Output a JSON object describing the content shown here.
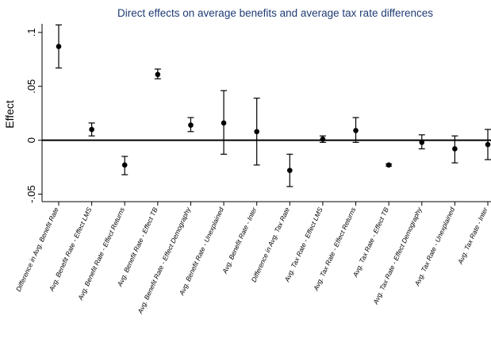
{
  "chart_data": {
    "type": "scatter",
    "title": "Direct effects on average benefits and average tax rate differences",
    "xlabel": "",
    "ylabel": "Effect",
    "ylim": [
      -0.057,
      0.108
    ],
    "yticks": [
      -0.05,
      0,
      0.05,
      0.1
    ],
    "ytick_labels": [
      "-.05",
      "0",
      ".05",
      ".1"
    ],
    "grid": false,
    "zero_line": true,
    "categories": [
      "Difference in Avg. Benefit Rate",
      "Avg. Benefit Rate - Effect LMS",
      "Avg. Benefit Rate - Effect Returns",
      "Avg. Benefit Rate - Effect TB",
      "Avg. Benefit Rate - Effect Demography",
      "Avg. Benefit Rate - Unexplained",
      "Avg. Benefit Rate - Inter",
      "Difference in Avg. Tax Rate",
      "Avg. Tax Rate - Effect LMS",
      "Avg. Tax Rate - Effect Returns",
      "Avg. Tax Rate - Effect TB",
      "Avg. Tax Rate - Effect Demography",
      "Avg. Tax Rate - Unexplained",
      "Avg. Tax Rate - Inter"
    ],
    "series": [
      {
        "values": [
          0.087,
          0.01,
          -0.023,
          0.061,
          0.014,
          0.016,
          0.008,
          -0.028,
          0.001,
          0.009,
          -0.023,
          -0.002,
          -0.008,
          -0.004
        ],
        "lower": [
          0.067,
          0.004,
          -0.032,
          0.057,
          0.008,
          -0.013,
          -0.023,
          -0.043,
          -0.002,
          -0.002,
          -0.024,
          -0.008,
          -0.021,
          -0.018
        ],
        "upper": [
          0.107,
          0.016,
          -0.015,
          0.066,
          0.021,
          0.046,
          0.039,
          -0.013,
          0.004,
          0.021,
          -0.022,
          0.005,
          0.004,
          0.01
        ]
      }
    ],
    "colors": {
      "marker": "#000000",
      "axis": "#000000",
      "title": "#1f3b73"
    }
  }
}
